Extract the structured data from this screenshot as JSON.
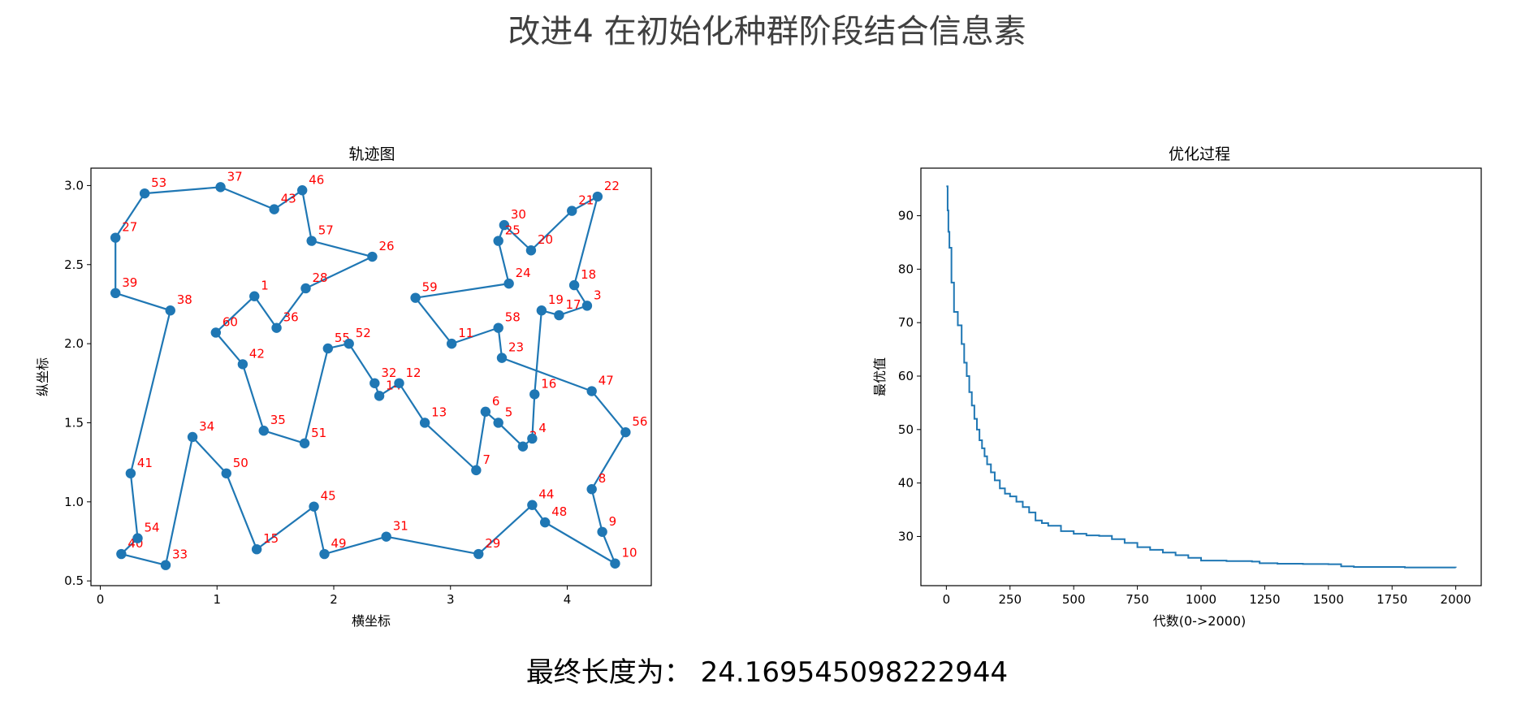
{
  "page_title": "改进4 在初始化种群阶段结合信息素",
  "final_text": "最终长度为： 24.169545098222944",
  "chart_data": [
    {
      "type": "line",
      "title": "轨迹图",
      "xlabel": "横坐标",
      "ylabel": "纵坐标",
      "xlim": [
        -0.08,
        4.72
      ],
      "ylim": [
        0.47,
        3.11
      ],
      "xticks": [
        0,
        1,
        2,
        3,
        4
      ],
      "yticks": [
        0.5,
        1.0,
        1.5,
        2.0,
        2.5,
        3.0
      ],
      "xtick_labels": [
        "0",
        "1",
        "2",
        "3",
        "4"
      ],
      "ytick_labels": [
        "0.5",
        "1.0",
        "1.5",
        "2.0",
        "2.5",
        "3.0"
      ],
      "line_color": "#1f77b4",
      "label_color": "#ff0000",
      "route": [
        {
          "label": "53",
          "x": 0.38,
          "y": 2.95
        },
        {
          "label": "37",
          "x": 1.03,
          "y": 2.99
        },
        {
          "label": "43",
          "x": 1.49,
          "y": 2.85
        },
        {
          "label": "46",
          "x": 1.73,
          "y": 2.97
        },
        {
          "label": "57",
          "x": 1.81,
          "y": 2.65
        },
        {
          "label": "26",
          "x": 2.33,
          "y": 2.55
        },
        {
          "label": "28",
          "x": 1.76,
          "y": 2.35
        },
        {
          "label": "36",
          "x": 1.51,
          "y": 2.1
        },
        {
          "label": "1",
          "x": 1.32,
          "y": 2.3
        },
        {
          "label": "60",
          "x": 0.99,
          "y": 2.07
        },
        {
          "label": "42",
          "x": 1.22,
          "y": 1.87
        },
        {
          "label": "35",
          "x": 1.4,
          "y": 1.45
        },
        {
          "label": "51",
          "x": 1.75,
          "y": 1.37
        },
        {
          "label": "55",
          "x": 1.95,
          "y": 1.97
        },
        {
          "label": "52",
          "x": 2.13,
          "y": 2.0
        },
        {
          "label": "32",
          "x": 2.35,
          "y": 1.75
        },
        {
          "label": "14",
          "x": 2.39,
          "y": 1.67
        },
        {
          "label": "12",
          "x": 2.56,
          "y": 1.75
        },
        {
          "label": "13",
          "x": 2.78,
          "y": 1.5
        },
        {
          "label": "7",
          "x": 3.22,
          "y": 1.2
        },
        {
          "label": "6",
          "x": 3.3,
          "y": 1.57
        },
        {
          "label": "5",
          "x": 3.41,
          "y": 1.5
        },
        {
          "label": "2",
          "x": 3.62,
          "y": 1.35
        },
        {
          "label": "4",
          "x": 3.7,
          "y": 1.4
        },
        {
          "label": "16",
          "x": 3.72,
          "y": 1.68
        },
        {
          "label": "19",
          "x": 3.78,
          "y": 2.21
        },
        {
          "label": "17",
          "x": 3.93,
          "y": 2.18
        },
        {
          "label": "3",
          "x": 4.17,
          "y": 2.24
        },
        {
          "label": "18",
          "x": 4.06,
          "y": 2.37
        },
        {
          "label": "22",
          "x": 4.26,
          "y": 2.93
        },
        {
          "label": "21",
          "x": 4.04,
          "y": 2.84
        },
        {
          "label": "20",
          "x": 3.69,
          "y": 2.59
        },
        {
          "label": "30",
          "x": 3.46,
          "y": 2.75
        },
        {
          "label": "25",
          "x": 3.41,
          "y": 2.65
        },
        {
          "label": "24",
          "x": 3.5,
          "y": 2.38
        },
        {
          "label": "59",
          "x": 2.7,
          "y": 2.29
        },
        {
          "label": "11",
          "x": 3.01,
          "y": 2.0
        },
        {
          "label": "58",
          "x": 3.41,
          "y": 2.1
        },
        {
          "label": "23",
          "x": 3.44,
          "y": 1.91
        },
        {
          "label": "47",
          "x": 4.21,
          "y": 1.7
        },
        {
          "label": "56",
          "x": 4.5,
          "y": 1.44
        },
        {
          "label": "8",
          "x": 4.21,
          "y": 1.08
        },
        {
          "label": "9",
          "x": 4.3,
          "y": 0.81
        },
        {
          "label": "10",
          "x": 4.41,
          "y": 0.61
        },
        {
          "label": "48",
          "x": 3.81,
          "y": 0.87
        },
        {
          "label": "44",
          "x": 3.7,
          "y": 0.98
        },
        {
          "label": "29",
          "x": 3.24,
          "y": 0.67
        },
        {
          "label": "31",
          "x": 2.45,
          "y": 0.78
        },
        {
          "label": "49",
          "x": 1.92,
          "y": 0.67
        },
        {
          "label": "45",
          "x": 1.83,
          "y": 0.97
        },
        {
          "label": "15",
          "x": 1.34,
          "y": 0.7
        },
        {
          "label": "50",
          "x": 1.08,
          "y": 1.18
        },
        {
          "label": "34",
          "x": 0.79,
          "y": 1.41
        },
        {
          "label": "33",
          "x": 0.56,
          "y": 0.6
        },
        {
          "label": "40",
          "x": 0.18,
          "y": 0.67
        },
        {
          "label": "54",
          "x": 0.32,
          "y": 0.77
        },
        {
          "label": "41",
          "x": 0.26,
          "y": 1.18
        },
        {
          "label": "38",
          "x": 0.6,
          "y": 2.21
        },
        {
          "label": "39",
          "x": 0.13,
          "y": 2.32
        },
        {
          "label": "27",
          "x": 0.13,
          "y": 2.67
        }
      ],
      "closed": true
    },
    {
      "type": "line",
      "title": "优化过程",
      "xlabel": "代数(0->2000)",
      "ylabel": "最优值",
      "xlim": [
        -100,
        2100
      ],
      "ylim": [
        20.8,
        98.9
      ],
      "xticks": [
        0,
        250,
        500,
        750,
        1000,
        1250,
        1500,
        1750,
        2000
      ],
      "yticks": [
        30,
        40,
        50,
        60,
        70,
        80,
        90
      ],
      "xtick_labels": [
        "0",
        "250",
        "500",
        "750",
        "1000",
        "1250",
        "1500",
        "1750",
        "2000"
      ],
      "ytick_labels": [
        "30",
        "40",
        "50",
        "60",
        "70",
        "80",
        "90"
      ],
      "line_color": "#1f77b4",
      "series": [
        {
          "x": [
            0,
            5,
            8,
            12,
            20,
            30,
            45,
            60,
            70,
            80,
            90,
            100,
            110,
            120,
            130,
            140,
            150,
            160,
            175,
            190,
            210,
            230,
            250,
            275,
            300,
            325,
            350,
            375,
            400,
            450,
            500,
            550,
            600,
            650,
            700,
            750,
            800,
            850,
            900,
            950,
            1000,
            1100,
            1200,
            1230,
            1300,
            1400,
            1500,
            1550,
            1600,
            1700,
            1800,
            1900,
            2000
          ],
          "y": [
            95.5,
            91,
            87,
            84,
            77.5,
            72,
            69.5,
            66,
            62.5,
            60,
            57,
            54.5,
            52,
            50,
            48,
            46.5,
            45,
            43.5,
            42,
            40.5,
            39,
            38,
            37.5,
            36.5,
            35.5,
            34.5,
            33,
            32.5,
            32,
            31,
            30.5,
            30.2,
            30.1,
            29.5,
            28.8,
            28,
            27.5,
            27,
            26.5,
            26,
            25.5,
            25.4,
            25.3,
            25,
            24.9,
            24.85,
            24.8,
            24.4,
            24.3,
            24.3,
            24.2,
            24.2,
            24.17
          ]
        }
      ]
    }
  ]
}
